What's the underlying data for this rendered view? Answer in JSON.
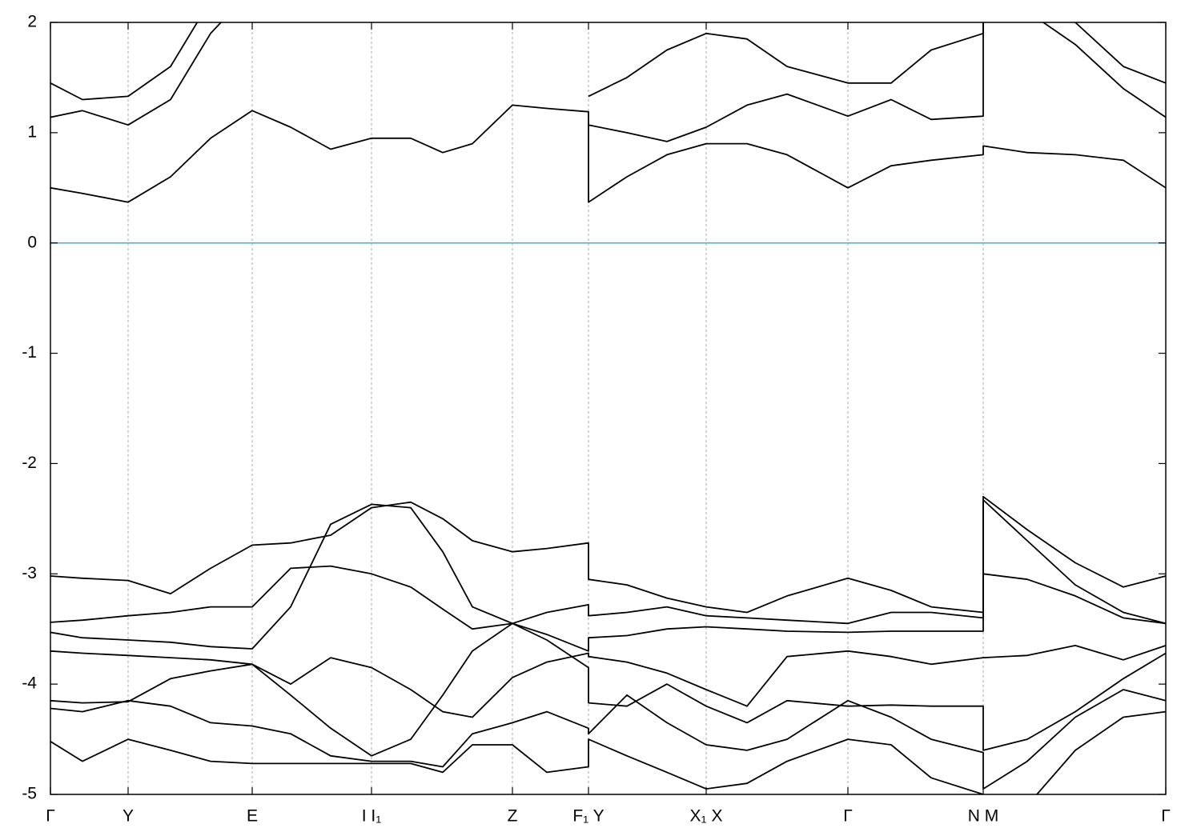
{
  "chart_data": {
    "type": "line",
    "x": [
      0,
      40,
      97,
      150,
      200,
      252,
      300,
      350,
      401,
      450,
      490,
      527,
      577,
      620,
      672,
      672,
      720,
      770,
      819,
      870,
      920,
      996,
      1050,
      1100,
      1165,
      1165,
      1220,
      1280,
      1340,
      1393
    ],
    "xlim": [
      0,
      1393
    ],
    "xticks": [
      {
        "value": 0,
        "label": "Γ"
      },
      {
        "value": 97,
        "label": "Y"
      },
      {
        "value": 252,
        "label": "E"
      },
      {
        "value": 401,
        "label": "I  I₁"
      },
      {
        "value": 577,
        "label": "Z"
      },
      {
        "value": 672,
        "label": "F₁ Y"
      },
      {
        "value": 819,
        "label": "X₁ X"
      },
      {
        "value": 996,
        "label": "Γ"
      },
      {
        "value": 1165,
        "label": "N M"
      },
      {
        "value": 1393,
        "label": "Γ"
      }
    ],
    "ylim": [
      -5,
      2
    ],
    "yticks": [
      2,
      1,
      0,
      -1,
      -2,
      -3,
      -4,
      -5
    ],
    "grid": true,
    "fermi_level": 0,
    "fermi_color": "#4fb0c6",
    "series": [
      {
        "color": "#000000",
        "values": [
          0.5,
          0.45,
          0.37,
          0.6,
          0.95,
          1.2,
          1.05,
          0.85,
          0.95,
          0.95,
          0.82,
          0.9,
          1.25,
          1.22,
          1.19,
          0.37,
          0.6,
          0.8,
          0.9,
          0.9,
          0.8,
          0.5,
          0.7,
          0.75,
          0.8,
          0.88,
          0.82,
          0.8,
          0.75,
          0.5
        ]
      },
      {
        "color": "#000000",
        "values": [
          1.14,
          1.2,
          1.07,
          1.3,
          1.9,
          2.3,
          null,
          null,
          null,
          null,
          null,
          null,
          null,
          null,
          null,
          1.07,
          1.0,
          0.92,
          1.05,
          1.25,
          1.35,
          1.15,
          1.3,
          1.12,
          1.15,
          2.3,
          2.1,
          1.8,
          1.4,
          1.14
        ]
      },
      {
        "color": "#000000",
        "values": [
          1.45,
          1.3,
          1.33,
          1.6,
          2.2,
          null,
          null,
          null,
          null,
          null,
          null,
          null,
          null,
          null,
          null,
          1.33,
          1.5,
          1.75,
          1.9,
          1.85,
          1.6,
          1.45,
          1.45,
          1.75,
          1.9,
          2.5,
          2.3,
          2.0,
          1.6,
          1.45
        ]
      },
      {
        "color": "#000000",
        "values": [
          -3.02,
          -3.04,
          -3.06,
          -3.18,
          -2.95,
          -2.74,
          -2.72,
          -2.65,
          -2.4,
          -2.35,
          -2.5,
          -2.7,
          -2.8,
          -2.77,
          -2.72,
          -3.05,
          -3.1,
          -3.22,
          -3.3,
          -3.35,
          -3.2,
          -3.04,
          -3.15,
          -3.3,
          -3.35,
          -2.3,
          -2.6,
          -2.9,
          -3.12,
          -3.02
        ]
      },
      {
        "color": "#000000",
        "values": [
          -3.44,
          -3.42,
          -3.38,
          -3.35,
          -3.3,
          -3.3,
          -2.95,
          -2.93,
          -3.0,
          -3.12,
          -3.32,
          -3.5,
          -3.45,
          -3.35,
          -3.28,
          -3.38,
          -3.35,
          -3.3,
          -3.38,
          -3.4,
          -3.42,
          -3.45,
          -3.35,
          -3.35,
          -3.4,
          -2.33,
          -2.7,
          -3.1,
          -3.35,
          -3.45
        ]
      },
      {
        "color": "#000000",
        "values": [
          -3.53,
          -3.58,
          -3.6,
          -3.62,
          -3.66,
          -3.68,
          -3.3,
          -2.55,
          -2.37,
          -2.4,
          -2.8,
          -3.3,
          -3.45,
          -3.55,
          -3.7,
          -3.58,
          -3.56,
          -3.5,
          -3.48,
          -3.5,
          -3.52,
          -3.53,
          -3.52,
          -3.52,
          -3.52,
          -3.0,
          -3.05,
          -3.2,
          -3.4,
          -3.45
        ]
      },
      {
        "color": "#000000",
        "values": [
          -3.7,
          -3.72,
          -3.74,
          -3.76,
          -3.78,
          -3.82,
          -4.0,
          -3.76,
          -3.85,
          -4.05,
          -4.25,
          -4.3,
          -3.94,
          -3.8,
          -3.72,
          -3.75,
          -3.8,
          -3.9,
          -4.05,
          -4.2,
          -3.75,
          -3.7,
          -3.75,
          -3.82,
          -3.76,
          -3.76,
          -3.74,
          -3.65,
          -3.78,
          -3.65
        ]
      },
      {
        "color": "#000000",
        "values": [
          -4.15,
          -4.17,
          -4.16,
          -3.95,
          -3.88,
          -3.82,
          -4.1,
          -4.4,
          -4.65,
          -4.5,
          -4.1,
          -3.7,
          -3.45,
          -3.6,
          -3.85,
          -4.17,
          -4.2,
          -4.0,
          -4.2,
          -4.35,
          -4.15,
          -4.2,
          -4.19,
          -4.2,
          -4.2,
          -4.6,
          -4.5,
          -4.25,
          -3.95,
          -3.72
        ]
      },
      {
        "color": "#000000",
        "values": [
          -4.22,
          -4.25,
          -4.15,
          -4.2,
          -4.35,
          -4.38,
          -4.45,
          -4.65,
          -4.7,
          -4.7,
          -4.75,
          -4.45,
          -4.35,
          -4.25,
          -4.4,
          -4.45,
          -4.1,
          -4.35,
          -4.55,
          -4.6,
          -4.5,
          -4.15,
          -4.3,
          -4.5,
          -4.62,
          -4.95,
          -4.7,
          -4.3,
          -4.05,
          -4.15
        ]
      },
      {
        "color": "#000000",
        "values": [
          -4.52,
          -4.7,
          -4.5,
          -4.6,
          -4.7,
          -4.72,
          -4.72,
          -4.72,
          -4.72,
          -4.72,
          -4.8,
          -4.55,
          -4.55,
          -4.8,
          -4.75,
          -4.5,
          -4.65,
          -4.8,
          -4.95,
          -4.9,
          -4.7,
          -4.5,
          -4.55,
          -4.85,
          -5.0,
          -5.2,
          -5.1,
          -4.6,
          -4.3,
          -4.25
        ]
      }
    ]
  }
}
